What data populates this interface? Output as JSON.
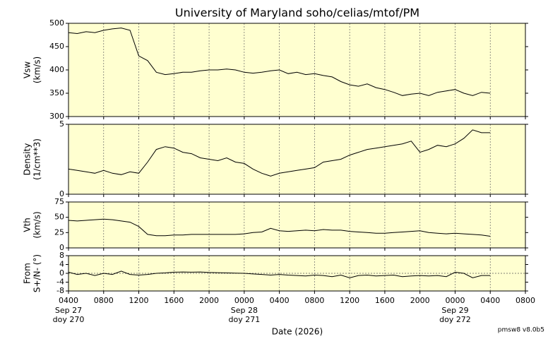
{
  "figure": {
    "title": "University of Maryland  soho/celias/mtof/PM",
    "xlabel": "Date (2026)",
    "footer": "pmsw8 v8.0b5",
    "xlim": [
      4,
      56
    ],
    "xticks": [
      {
        "value": 4,
        "label": "0400"
      },
      {
        "value": 8,
        "label": "0800"
      },
      {
        "value": 12,
        "label": "1200"
      },
      {
        "value": 16,
        "label": "1600"
      },
      {
        "value": 20,
        "label": "2000"
      },
      {
        "value": 24,
        "label": "0000"
      },
      {
        "value": 28,
        "label": "0400"
      },
      {
        "value": 32,
        "label": "0800"
      },
      {
        "value": 36,
        "label": "1200"
      },
      {
        "value": 40,
        "label": "1600"
      },
      {
        "value": 44,
        "label": "2000"
      },
      {
        "value": 48,
        "label": "0000"
      },
      {
        "value": 52,
        "label": "0400"
      },
      {
        "value": 56,
        "label": "0800"
      }
    ],
    "day_labels": [
      {
        "value": 4,
        "date": "Sep 27",
        "doy": "doy 270"
      },
      {
        "value": 24,
        "date": "Sep 28",
        "doy": "doy 271"
      },
      {
        "value": 48,
        "date": "Sep 29",
        "doy": "doy 272"
      }
    ],
    "x": [
      4,
      5,
      6,
      7,
      8,
      9,
      10,
      11,
      12,
      13,
      14,
      15,
      16,
      17,
      18,
      19,
      20,
      21,
      22,
      23,
      24,
      25,
      26,
      27,
      28,
      29,
      30,
      31,
      32,
      33,
      34,
      35,
      36,
      37,
      38,
      39,
      40,
      41,
      42,
      43,
      44,
      45,
      46,
      47,
      48,
      49,
      50,
      51,
      52
    ],
    "background": "#ffffd0",
    "grid": true
  },
  "chart_data": [
    {
      "type": "line",
      "ylabel": [
        "Vsw",
        "(km/s)"
      ],
      "ylim": [
        300,
        500
      ],
      "yticks": [
        300,
        350,
        400,
        450,
        500
      ],
      "color": "#000000",
      "values": [
        480,
        478,
        482,
        480,
        485,
        488,
        490,
        485,
        430,
        420,
        395,
        390,
        392,
        395,
        395,
        398,
        400,
        400,
        402,
        400,
        395,
        393,
        395,
        398,
        400,
        392,
        395,
        390,
        392,
        388,
        385,
        375,
        368,
        365,
        370,
        362,
        358,
        352,
        345,
        348,
        350,
        345,
        352,
        355,
        358,
        350,
        345,
        352,
        350
      ]
    },
    {
      "type": "line",
      "ylabel": [
        "Density",
        "(1/cm**3)"
      ],
      "ylim": [
        0,
        5
      ],
      "yticks": [
        0,
        5
      ],
      "color": "#000000",
      "values": [
        1.8,
        1.7,
        1.6,
        1.5,
        1.7,
        1.5,
        1.4,
        1.6,
        1.5,
        2.3,
        3.2,
        3.4,
        3.3,
        3.0,
        2.9,
        2.6,
        2.5,
        2.4,
        2.6,
        2.3,
        2.2,
        1.8,
        1.5,
        1.3,
        1.5,
        1.6,
        1.7,
        1.8,
        1.9,
        2.3,
        2.4,
        2.5,
        2.8,
        3.0,
        3.2,
        3.3,
        3.4,
        3.5,
        3.6,
        3.8,
        3.0,
        3.2,
        3.5,
        3.4,
        3.6,
        4.0,
        4.6,
        4.4,
        4.4
      ]
    },
    {
      "type": "line",
      "ylabel": [
        "Vth",
        "(km/s)"
      ],
      "ylim": [
        0,
        75
      ],
      "yticks": [
        0,
        25,
        50,
        75
      ],
      "color": "#000000",
      "values": [
        45,
        44,
        45,
        46,
        47,
        46,
        44,
        42,
        35,
        22,
        20,
        20,
        21,
        21,
        22,
        22,
        22,
        22,
        22,
        22,
        23,
        25,
        26,
        32,
        28,
        27,
        28,
        29,
        28,
        30,
        29,
        29,
        27,
        26,
        25,
        24,
        24,
        25,
        26,
        27,
        28,
        25,
        24,
        23,
        24,
        23,
        22,
        21,
        19
      ]
    },
    {
      "type": "line",
      "ylabel": [
        "From",
        "S+/N- (°)"
      ],
      "ylim": [
        -8,
        8
      ],
      "yticks": [
        -8,
        -4,
        0,
        4,
        8
      ],
      "color": "#000000",
      "zero_line": true,
      "values": [
        0.5,
        -0.5,
        0,
        -1,
        0,
        -0.5,
        1,
        -0.5,
        -0.8,
        -0.5,
        0,
        0.2,
        0.5,
        0.6,
        0.5,
        0.6,
        0.4,
        0.3,
        0.2,
        0.1,
        0,
        -0.3,
        -0.5,
        -0.8,
        -0.5,
        -0.8,
        -1,
        -1.2,
        -0.8,
        -1,
        -1.5,
        -0.8,
        -2,
        -1,
        -0.8,
        -1.2,
        -1,
        -0.8,
        -1.5,
        -1.2,
        -1,
        -1.2,
        -1,
        -1.5,
        0.5,
        0,
        -2,
        -1,
        -1
      ]
    }
  ]
}
